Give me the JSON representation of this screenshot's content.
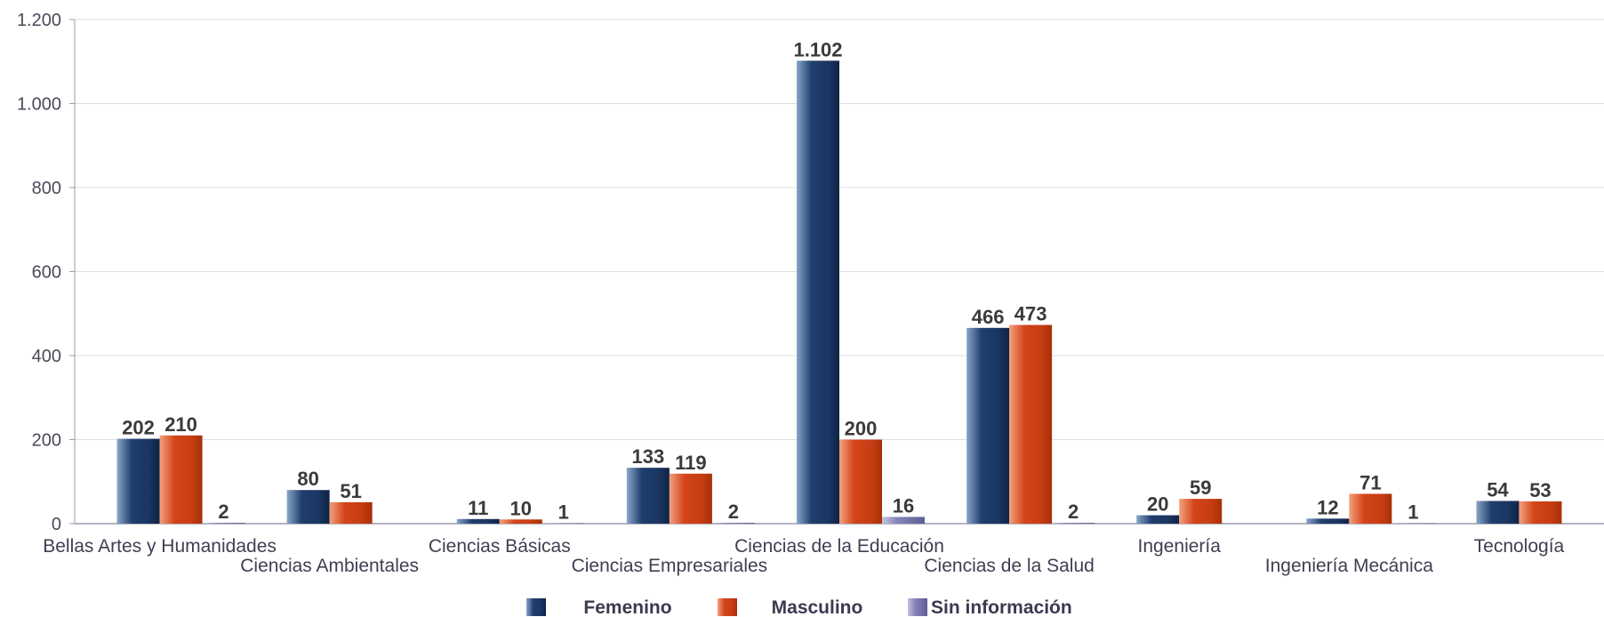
{
  "chart_data": {
    "type": "bar",
    "categories": [
      "Bellas Artes y Humanidades",
      "Ciencias Ambientales",
      "Ciencias Básicas",
      "Ciencias Empresariales",
      "Ciencias de la Educación",
      "Ciencias de la Salud",
      "Ingeniería",
      "Ingeniería Mecánica",
      "Tecnología"
    ],
    "series": [
      {
        "name": "Femenino",
        "values": [
          202,
          80,
          11,
          133,
          1102,
          466,
          20,
          12,
          54
        ],
        "labels": [
          "202",
          "80",
          "11",
          "133",
          "1.102",
          "466",
          "20",
          "12",
          "54"
        ]
      },
      {
        "name": "Masculino",
        "values": [
          210,
          51,
          10,
          119,
          200,
          473,
          59,
          71,
          53
        ],
        "labels": [
          "210",
          "51",
          "10",
          "119",
          "200",
          "473",
          "59",
          "71",
          "53"
        ]
      },
      {
        "name": "Sin información",
        "values": [
          2,
          null,
          1,
          2,
          16,
          2,
          null,
          1,
          null
        ],
        "labels": [
          "2",
          "",
          "1",
          "2",
          "16",
          "2",
          "",
          "1",
          ""
        ]
      }
    ],
    "colors": {
      "Femenino": "#1f3e6e",
      "Masculino": "#d4441a",
      "Sin información": "#7e7cb0"
    },
    "ylim": [
      0,
      1200
    ],
    "y_ticks": [
      0,
      200,
      400,
      600,
      800,
      1000,
      1200
    ],
    "y_tick_labels": [
      "0",
      "200",
      "400",
      "600",
      "800",
      "1.000",
      "1.200"
    ],
    "grid": true,
    "legend_position": "bottom",
    "title": "",
    "xlabel": "",
    "ylabel": ""
  }
}
